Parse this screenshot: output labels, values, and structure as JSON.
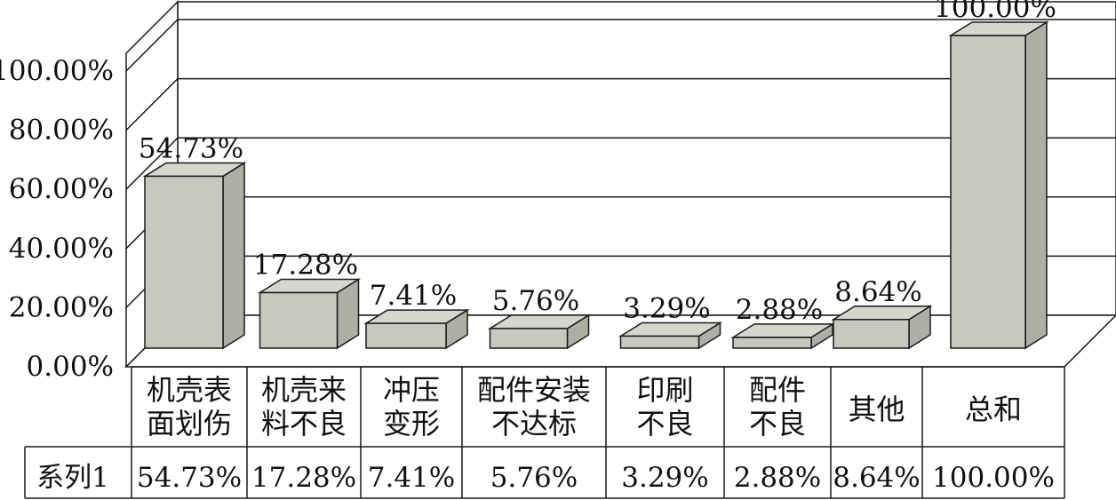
{
  "chart_data": {
    "type": "bar",
    "categories": [
      [
        "机壳表",
        "面划伤"
      ],
      [
        "机壳来",
        "料不良"
      ],
      [
        "冲压",
        "变形"
      ],
      [
        "配件安装",
        "不达标"
      ],
      [
        "印刷",
        "不良"
      ],
      [
        "配件",
        "不良"
      ],
      [
        "其他"
      ],
      [
        "总和"
      ]
    ],
    "series": [
      {
        "name": "系列1",
        "values": [
          54.73,
          17.28,
          7.41,
          5.76,
          3.29,
          2.88,
          8.64,
          100.0
        ],
        "labels": [
          "54.73%",
          "17.28%",
          "7.41%",
          "5.76%",
          "3.29%",
          "2.88%",
          "8.64%",
          "100.00%"
        ]
      }
    ],
    "y_ticks": [
      "0.00%",
      "20.00%",
      "40.00%",
      "60.00%",
      "80.00%",
      "100.00%"
    ],
    "ylim": [
      0,
      100
    ],
    "grid": true,
    "bar_style": "3d",
    "legend": "data-table-below",
    "colors": {
      "bar_front": "#c8c8c0",
      "bar_top": "#d6d6cf",
      "bar_side": "#aeaea6",
      "wall": "#ffffff",
      "stroke": "#1a1a1a"
    }
  }
}
